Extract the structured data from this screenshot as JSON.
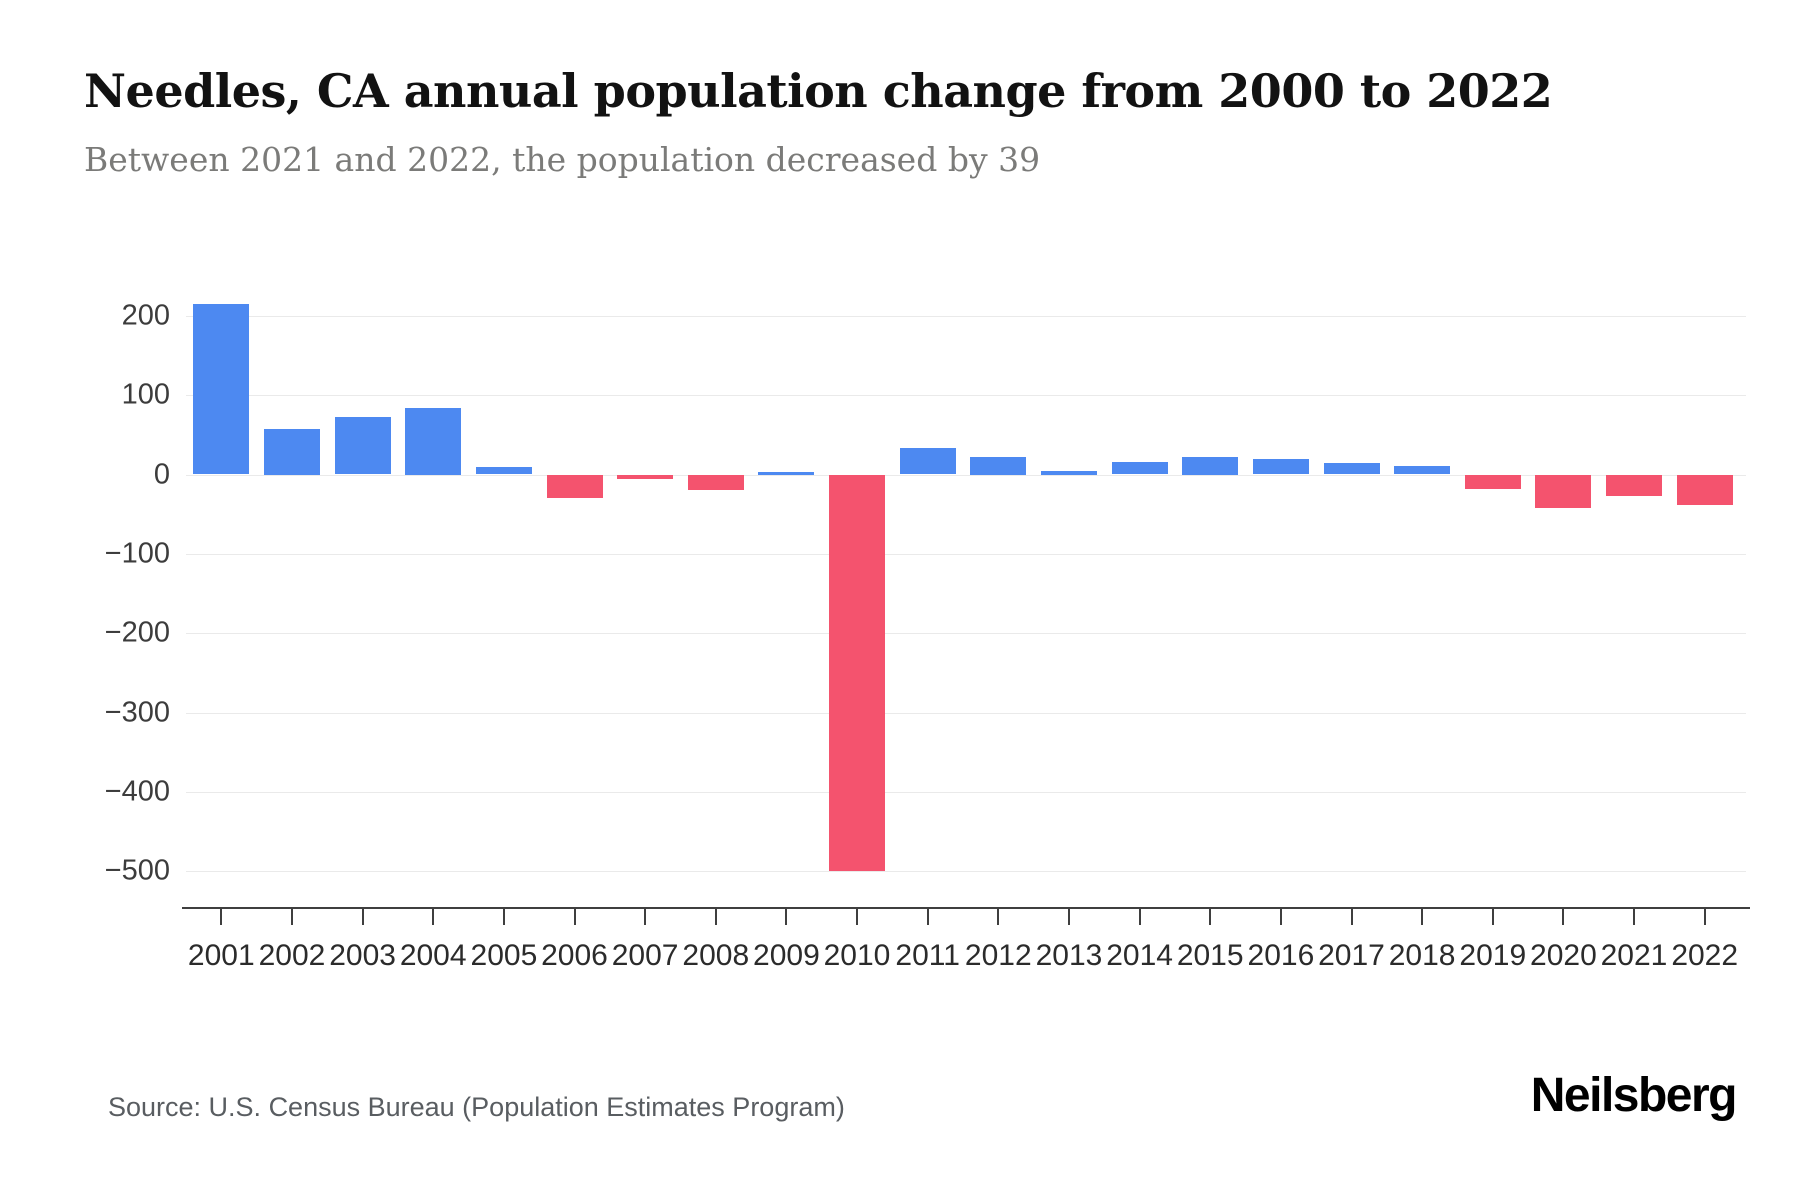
{
  "header": {
    "title": "Needles, CA annual population change from 2000 to 2022",
    "subtitle": "Between 2021 and 2022, the population decreased by 39"
  },
  "footer": {
    "source": "Source: U.S. Census Bureau (Population Estimates Program)",
    "brand": "Neilsberg"
  },
  "chart_data": {
    "type": "bar",
    "title": "Needles, CA annual population change from 2000 to 2022",
    "xlabel": "",
    "ylabel": "",
    "categories": [
      "2001",
      "2002",
      "2003",
      "2004",
      "2005",
      "2006",
      "2007",
      "2008",
      "2009",
      "2010",
      "2011",
      "2012",
      "2013",
      "2014",
      "2015",
      "2016",
      "2017",
      "2018",
      "2019",
      "2020",
      "2021",
      "2022"
    ],
    "values": [
      215,
      58,
      73,
      84,
      9,
      -29,
      -5,
      -20,
      3,
      -500,
      33,
      22,
      5,
      16,
      22,
      19,
      15,
      11,
      -18,
      -42,
      -27,
      -39
    ],
    "ylim": [
      -545,
      230
    ],
    "yticks": [
      200,
      100,
      0,
      -100,
      -200,
      -300,
      -400,
      -500
    ],
    "grid": true,
    "legend": false,
    "colors": {
      "positive": "#4d89f1",
      "negative": "#f4536e"
    }
  }
}
